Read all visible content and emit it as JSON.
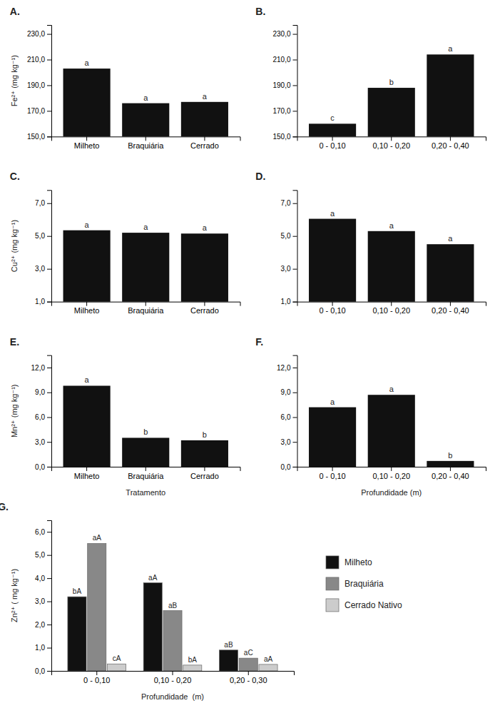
{
  "chart_data": [
    {
      "type": "bar",
      "title": "A.",
      "categories": [
        "Milheto",
        "Braquiária",
        "Cerrado"
      ],
      "values": [
        203.0,
        176.0,
        177.0
      ],
      "annotations": [
        "a",
        "a",
        "a"
      ],
      "color": "#111111",
      "ylabel": "Fe²⁺ (mg kg⁻¹)",
      "ylim": [
        150.0,
        237.0
      ],
      "yticks": [
        {
          "value": 150.0,
          "label": "150,0"
        },
        {
          "value": 170.0,
          "label": "170,0"
        },
        {
          "value": 190.0,
          "label": "190,0"
        },
        {
          "value": 210.0,
          "label": "210,0"
        },
        {
          "value": 230.0,
          "label": "230,0"
        }
      ]
    },
    {
      "type": "bar",
      "title": "B.",
      "categories": [
        "0 - 0,10",
        "0,10 - 0,20",
        "0,20 - 0,40"
      ],
      "values": [
        160.0,
        188.0,
        214.0
      ],
      "annotations": [
        "c",
        "b",
        "a"
      ],
      "color": "#111111",
      "ylim": [
        150.0,
        237.0
      ],
      "yticks": [
        {
          "value": 150.0,
          "label": "150,0"
        },
        {
          "value": 170.0,
          "label": "170,0"
        },
        {
          "value": 190.0,
          "label": "190,0"
        },
        {
          "value": 210.0,
          "label": "210,0"
        },
        {
          "value": 230.0,
          "label": "230,0"
        }
      ]
    },
    {
      "type": "bar",
      "title": "C.",
      "categories": [
        "Milheto",
        "Braquiária",
        "Cerrado"
      ],
      "values": [
        5.35,
        5.2,
        5.15
      ],
      "annotations": [
        "a",
        "a",
        "a"
      ],
      "color": "#111111",
      "ylabel": "Cu²⁺ (mg kg⁻¹)",
      "ylim": [
        1.0,
        7.8
      ],
      "yticks": [
        {
          "value": 1.0,
          "label": "1,0"
        },
        {
          "value": 3.0,
          "label": "3,0"
        },
        {
          "value": 5.0,
          "label": "5,0"
        },
        {
          "value": 7.0,
          "label": "7,0"
        }
      ]
    },
    {
      "type": "bar",
      "title": "D.",
      "categories": [
        "0 - 0,10",
        "0,10 - 0,20",
        "0,20 - 0,40"
      ],
      "values": [
        6.05,
        5.3,
        4.5
      ],
      "annotations": [
        "a",
        "a",
        "a"
      ],
      "color": "#111111",
      "ylim": [
        1.0,
        7.8
      ],
      "yticks": [
        {
          "value": 1.0,
          "label": "1,0"
        },
        {
          "value": 3.0,
          "label": "3,0"
        },
        {
          "value": 5.0,
          "label": "5,0"
        },
        {
          "value": 7.0,
          "label": "7,0"
        }
      ]
    },
    {
      "type": "bar",
      "title": "E.",
      "categories": [
        "Milheto",
        "Braquiária",
        "Cerrado"
      ],
      "values": [
        9.8,
        3.5,
        3.2
      ],
      "annotations": [
        "a",
        "b",
        "b"
      ],
      "color": "#111111",
      "ylabel": "Mn²⁺ (mg kg⁻¹)",
      "xlabel": "Tratamento",
      "ylim": [
        0.0,
        13.5
      ],
      "yticks": [
        {
          "value": 0.0,
          "label": "0,0"
        },
        {
          "value": 3.0,
          "label": "3,0"
        },
        {
          "value": 6.0,
          "label": "6,0"
        },
        {
          "value": 9.0,
          "label": "9,0"
        },
        {
          "value": 12.0,
          "label": "12,0"
        }
      ]
    },
    {
      "type": "bar",
      "title": "F.",
      "categories": [
        "0 - 0,10",
        "0,10 - 0,20",
        "0,20 - 0,40"
      ],
      "values": [
        7.2,
        8.7,
        0.7
      ],
      "annotations": [
        "a",
        "a",
        "b"
      ],
      "color": "#111111",
      "xlabel": "Profundidade (m)",
      "ylim": [
        0.0,
        13.5
      ],
      "yticks": [
        {
          "value": 0.0,
          "label": "0,0"
        },
        {
          "value": 3.0,
          "label": "3,0"
        },
        {
          "value": 6.0,
          "label": "6,0"
        },
        {
          "value": 9.0,
          "label": "9,0"
        },
        {
          "value": 12.0,
          "label": "12,0"
        }
      ]
    },
    {
      "type": "bar",
      "title": "G.",
      "categories": [
        "0 - 0,10",
        "0,10 - 0,20",
        "0,20 - 0,30"
      ],
      "series": [
        {
          "name": "Milheto",
          "color": "#111111",
          "values": [
            3.2,
            3.8,
            0.9
          ],
          "annotations": [
            "bA",
            "aA",
            "aB"
          ]
        },
        {
          "name": "Braquiária",
          "color": "#888888",
          "values": [
            5.5,
            2.6,
            0.55
          ],
          "annotations": [
            "aA",
            "aB",
            "aC"
          ]
        },
        {
          "name": "Cerrado Nativo",
          "color": "#cccccc",
          "values": [
            0.3,
            0.25,
            0.28
          ],
          "annotations": [
            "cA",
            "bA",
            "aA"
          ]
        }
      ],
      "ylabel": "Zn²⁺ ( mg kg⁻¹)",
      "xlabel": "Profundidade  (m)",
      "legend": "right",
      "ylim": [
        0.0,
        6.5
      ],
      "yticks": [
        {
          "value": 0.0,
          "label": "0,0"
        },
        {
          "value": 1.0,
          "label": "1,0"
        },
        {
          "value": 2.0,
          "label": "2,0"
        },
        {
          "value": 3.0,
          "label": "3,0"
        },
        {
          "value": 4.0,
          "label": "4,0"
        },
        {
          "value": 5.0,
          "label": "5,0"
        },
        {
          "value": 6.0,
          "label": "6,0"
        }
      ]
    }
  ]
}
